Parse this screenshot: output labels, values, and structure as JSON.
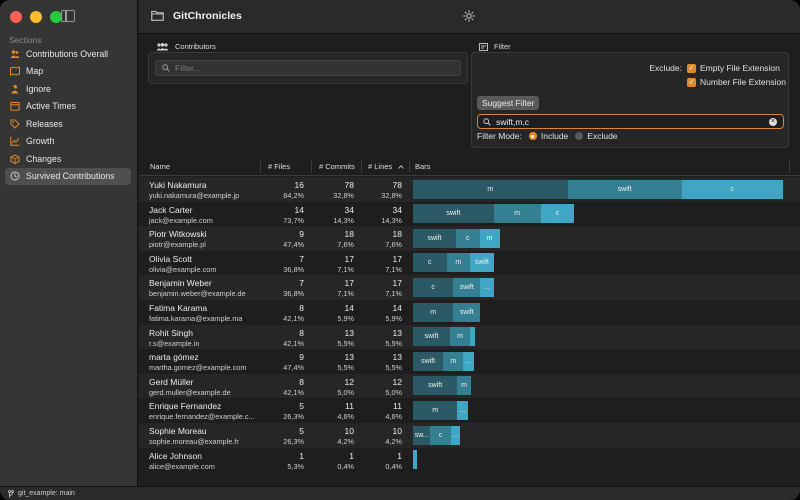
{
  "colors": {
    "seg_dark": "#2b5a66",
    "seg_mid": "#357f92",
    "seg_light": "#3fa7c4",
    "accent": "#e08a2c"
  },
  "sidebar": {
    "section_label": "Sections",
    "items": [
      {
        "label": "Contributions Overall",
        "icon": "people-icon"
      },
      {
        "label": "Map",
        "icon": "map-icon"
      },
      {
        "label": "Ignore",
        "icon": "person-slash-icon"
      },
      {
        "label": "Active Times",
        "icon": "calendar-icon"
      },
      {
        "label": "Releases",
        "icon": "tag-icon"
      },
      {
        "label": "Growth",
        "icon": "chart-line-icon"
      },
      {
        "label": "Changes",
        "icon": "box-icon"
      },
      {
        "label": "Survived Contributions",
        "icon": "history-icon",
        "active": true
      }
    ]
  },
  "toolbar": {
    "title": "GitChronicles"
  },
  "contributors": {
    "title": "Contributors",
    "search_placeholder": "Filter..."
  },
  "filter": {
    "title": "Filter",
    "exclude_label": "Exclude:",
    "checkboxes": [
      {
        "label": "Empty File Extension",
        "checked": true
      },
      {
        "label": "Number File Extension",
        "checked": true
      }
    ],
    "suggest_label": "Suggest Filter",
    "input_value": "swift,m,c",
    "mode_label": "Filter Mode:",
    "include_label": "Include",
    "exclude_option": "Exclude",
    "mode": "include"
  },
  "table": {
    "columns": [
      "Name",
      "# Files",
      "# Commits",
      "# Lines",
      "Bars"
    ],
    "rows": [
      {
        "name": "Yuki Nakamura",
        "email": "yuki.nakamura@example.jp",
        "files": "16",
        "files_pct": "84,2%",
        "commits": "78",
        "commits_pct": "32,8%",
        "lines": "78",
        "lines_pct": "32,8%",
        "segments": [
          {
            "label": "m",
            "value": 23,
            "color": "dark"
          },
          {
            "label": "swift",
            "value": 17,
            "color": "mid"
          },
          {
            "label": "c",
            "value": 15,
            "color": "light"
          }
        ]
      },
      {
        "name": "Jack Carter",
        "email": "jack@example.com",
        "files": "14",
        "files_pct": "73,7%",
        "commits": "34",
        "commits_pct": "14,3%",
        "lines": "34",
        "lines_pct": "14,3%",
        "segments": [
          {
            "label": "swift",
            "value": 12,
            "color": "dark"
          },
          {
            "label": "m",
            "value": 7,
            "color": "mid"
          },
          {
            "label": "c",
            "value": 5,
            "color": "light"
          }
        ]
      },
      {
        "name": "Piotr Witkowski",
        "email": "piotr@example.pl",
        "files": "9",
        "files_pct": "47,4%",
        "commits": "18",
        "commits_pct": "7,6%",
        "lines": "18",
        "lines_pct": "7,6%",
        "segments": [
          {
            "label": "swift",
            "value": 6.4,
            "color": "dark"
          },
          {
            "label": "c",
            "value": 3.5,
            "color": "mid"
          },
          {
            "label": "m",
            "value": 3,
            "color": "light"
          }
        ]
      },
      {
        "name": "Olivia Scott",
        "email": "olivia@example.com",
        "files": "7",
        "files_pct": "36,8%",
        "commits": "17",
        "commits_pct": "7,1%",
        "lines": "17",
        "lines_pct": "7,1%",
        "segments": [
          {
            "label": "c",
            "value": 5,
            "color": "dark"
          },
          {
            "label": "m",
            "value": 3.5,
            "color": "mid"
          },
          {
            "label": "swift",
            "value": 3.5,
            "color": "light"
          }
        ]
      },
      {
        "name": "Benjamin Weber",
        "email": "benjamin.weber@example.de",
        "files": "7",
        "files_pct": "36,8%",
        "commits": "17",
        "commits_pct": "7,1%",
        "lines": "17",
        "lines_pct": "7,1%",
        "segments": [
          {
            "label": "c",
            "value": 6,
            "color": "dark"
          },
          {
            "label": "swift",
            "value": 4,
            "color": "mid"
          },
          {
            "label": "...",
            "value": 2,
            "color": "light"
          }
        ]
      },
      {
        "name": "Fatima Karama",
        "email": "fatima.karama@example.ma",
        "files": "8",
        "files_pct": "42,1%",
        "commits": "14",
        "commits_pct": "5,9%",
        "lines": "14",
        "lines_pct": "5,9%",
        "segments": [
          {
            "label": "m",
            "value": 6,
            "color": "dark"
          },
          {
            "label": "swift",
            "value": 4,
            "color": "mid"
          }
        ]
      },
      {
        "name": "Rohit Singh",
        "email": "r.s@example.in",
        "files": "8",
        "files_pct": "42,1%",
        "commits": "13",
        "commits_pct": "5,5%",
        "lines": "13",
        "lines_pct": "5,5%",
        "segments": [
          {
            "label": "swift",
            "value": 5.5,
            "color": "dark"
          },
          {
            "label": "m",
            "value": 3,
            "color": "mid"
          },
          {
            "label": "",
            "value": 0.8,
            "color": "light"
          }
        ]
      },
      {
        "name": "marta gómez",
        "email": "martha.gomez@example.com",
        "files": "9",
        "files_pct": "47,4%",
        "commits": "13",
        "commits_pct": "5,5%",
        "lines": "13",
        "lines_pct": "5,5%",
        "segments": [
          {
            "label": "swift",
            "value": 4.5,
            "color": "dark"
          },
          {
            "label": "m",
            "value": 3,
            "color": "mid"
          },
          {
            "label": "...",
            "value": 1.6,
            "color": "light"
          }
        ]
      },
      {
        "name": "Gerd Müller",
        "email": "gerd.muller@example.de",
        "files": "8",
        "files_pct": "42,1%",
        "commits": "12",
        "commits_pct": "5,0%",
        "lines": "12",
        "lines_pct": "5,0%",
        "segments": [
          {
            "label": "swift",
            "value": 6.6,
            "color": "dark"
          },
          {
            "label": "m",
            "value": 2,
            "color": "mid"
          }
        ]
      },
      {
        "name": "Enrique Fernandez",
        "email": "enrique.fernandez@example.c...",
        "files": "5",
        "files_pct": "26,3%",
        "commits": "11",
        "commits_pct": "4,6%",
        "lines": "11",
        "lines_pct": "4,6%",
        "segments": [
          {
            "label": "m",
            "value": 6.6,
            "color": "dark"
          },
          {
            "label": "...",
            "value": 1.6,
            "color": "light"
          }
        ]
      },
      {
        "name": "Sophie Moreau",
        "email": "sophie.moreau@example.fr",
        "files": "5",
        "files_pct": "26,3%",
        "commits": "10",
        "commits_pct": "4,2%",
        "lines": "10",
        "lines_pct": "4,2%",
        "segments": [
          {
            "label": "sw...",
            "value": 2.6,
            "color": "dark"
          },
          {
            "label": "c",
            "value": 3,
            "color": "mid"
          },
          {
            "label": "...",
            "value": 1.4,
            "color": "light"
          }
        ]
      },
      {
        "name": "Alice Johnson",
        "email": "alice@example.com",
        "files": "1",
        "files_pct": "5,3%",
        "commits": "1",
        "commits_pct": "0,4%",
        "lines": "1",
        "lines_pct": "0,4%",
        "segments": [
          {
            "label": "",
            "value": 0.6,
            "color": "light"
          }
        ]
      }
    ]
  },
  "status": {
    "branch_text": "git_example: main"
  }
}
